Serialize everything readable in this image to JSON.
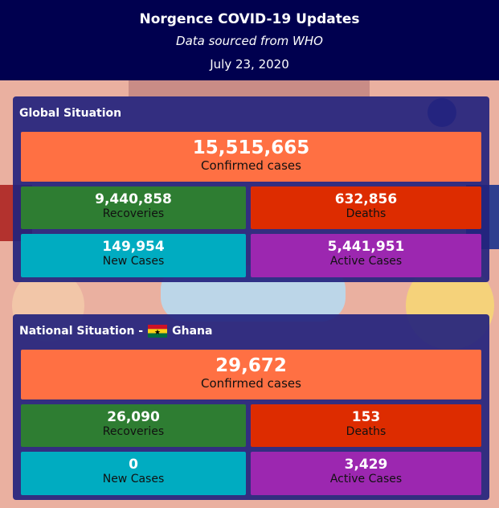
{
  "header": {
    "title": "Norgence COVID-19 Updates",
    "subtitle": "Data sourced from WHO",
    "date": "July 23, 2020"
  },
  "sections": [
    {
      "title": "Global Situation",
      "cards": [
        {
          "value": "15,515,665",
          "label": "Confirmed cases"
        },
        {
          "value": "9,440,858",
          "label": "Recoveries"
        },
        {
          "value": "632,856",
          "label": "Deaths"
        },
        {
          "value": "149,954",
          "label": "New Cases"
        },
        {
          "value": "5,441,951",
          "label": "Active Cases"
        }
      ]
    },
    {
      "title": "National Situation -",
      "country": "Ghana",
      "cards": [
        {
          "value": "29,672",
          "label": "Confirmed cases"
        },
        {
          "value": "26,090",
          "label": "Recoveries"
        },
        {
          "value": "153",
          "label": "Deaths"
        },
        {
          "value": "0",
          "label": "New Cases"
        },
        {
          "value": "3,429",
          "label": "Active Cases"
        }
      ]
    }
  ]
}
